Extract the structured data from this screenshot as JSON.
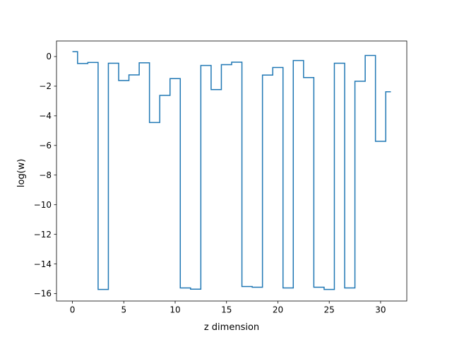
{
  "chart_data": {
    "type": "line",
    "drawstyle": "steps-mid",
    "title": "",
    "xlabel": "z dimension",
    "ylabel": "log(w)",
    "xlim": [
      -1.55,
      32.55
    ],
    "ylim": [
      -16.5,
      1.05
    ],
    "xticks": [
      0,
      5,
      10,
      15,
      20,
      25,
      30
    ],
    "yticks": [
      0,
      -2,
      -4,
      -6,
      -8,
      -10,
      -12,
      -14,
      -16
    ],
    "grid": false,
    "legend": "none",
    "series": [
      {
        "color": "#1f77b4",
        "x": [
          0,
          1,
          2,
          3,
          4,
          5,
          6,
          7,
          8,
          9,
          10,
          11,
          12,
          13,
          14,
          15,
          16,
          17,
          18,
          19,
          20,
          21,
          22,
          23,
          24,
          25,
          26,
          27,
          28,
          29,
          30,
          31
        ],
        "y": [
          0.33,
          -0.47,
          -0.4,
          -15.72,
          -0.45,
          -1.62,
          -1.24,
          -0.42,
          -4.45,
          -2.62,
          -1.49,
          -15.62,
          -15.7,
          -0.6,
          -2.23,
          -0.55,
          -0.38,
          -15.52,
          -15.57,
          -1.25,
          -0.74,
          -15.62,
          -0.27,
          -1.42,
          -15.57,
          -15.72,
          -0.45,
          -15.62,
          -1.67,
          0.07,
          -5.72,
          -2.38
        ]
      }
    ]
  }
}
